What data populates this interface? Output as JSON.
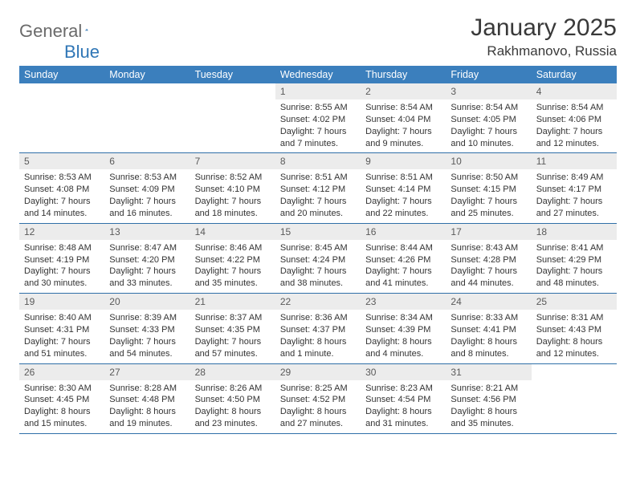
{
  "brand": {
    "name_a": "General",
    "name_b": "Blue"
  },
  "title": "January 2025",
  "location": "Rakhmanovo, Russia",
  "colors": {
    "header_bg": "#3b7fbd",
    "header_text": "#ffffff",
    "daynum_bg": "#ececec",
    "daynum_text": "#5a5a5a",
    "row_border": "#2f6fa8",
    "body_text": "#333333",
    "logo_gray": "#6a6a6a",
    "logo_blue": "#2f76b6"
  },
  "weekdays": [
    "Sunday",
    "Monday",
    "Tuesday",
    "Wednesday",
    "Thursday",
    "Friday",
    "Saturday"
  ],
  "weeks": [
    [
      null,
      null,
      null,
      {
        "d": "1",
        "sr": "Sunrise: 8:55 AM",
        "ss": "Sunset: 4:02 PM",
        "dl1": "Daylight: 7 hours",
        "dl2": "and 7 minutes."
      },
      {
        "d": "2",
        "sr": "Sunrise: 8:54 AM",
        "ss": "Sunset: 4:04 PM",
        "dl1": "Daylight: 7 hours",
        "dl2": "and 9 minutes."
      },
      {
        "d": "3",
        "sr": "Sunrise: 8:54 AM",
        "ss": "Sunset: 4:05 PM",
        "dl1": "Daylight: 7 hours",
        "dl2": "and 10 minutes."
      },
      {
        "d": "4",
        "sr": "Sunrise: 8:54 AM",
        "ss": "Sunset: 4:06 PM",
        "dl1": "Daylight: 7 hours",
        "dl2": "and 12 minutes."
      }
    ],
    [
      {
        "d": "5",
        "sr": "Sunrise: 8:53 AM",
        "ss": "Sunset: 4:08 PM",
        "dl1": "Daylight: 7 hours",
        "dl2": "and 14 minutes."
      },
      {
        "d": "6",
        "sr": "Sunrise: 8:53 AM",
        "ss": "Sunset: 4:09 PM",
        "dl1": "Daylight: 7 hours",
        "dl2": "and 16 minutes."
      },
      {
        "d": "7",
        "sr": "Sunrise: 8:52 AM",
        "ss": "Sunset: 4:10 PM",
        "dl1": "Daylight: 7 hours",
        "dl2": "and 18 minutes."
      },
      {
        "d": "8",
        "sr": "Sunrise: 8:51 AM",
        "ss": "Sunset: 4:12 PM",
        "dl1": "Daylight: 7 hours",
        "dl2": "and 20 minutes."
      },
      {
        "d": "9",
        "sr": "Sunrise: 8:51 AM",
        "ss": "Sunset: 4:14 PM",
        "dl1": "Daylight: 7 hours",
        "dl2": "and 22 minutes."
      },
      {
        "d": "10",
        "sr": "Sunrise: 8:50 AM",
        "ss": "Sunset: 4:15 PM",
        "dl1": "Daylight: 7 hours",
        "dl2": "and 25 minutes."
      },
      {
        "d": "11",
        "sr": "Sunrise: 8:49 AM",
        "ss": "Sunset: 4:17 PM",
        "dl1": "Daylight: 7 hours",
        "dl2": "and 27 minutes."
      }
    ],
    [
      {
        "d": "12",
        "sr": "Sunrise: 8:48 AM",
        "ss": "Sunset: 4:19 PM",
        "dl1": "Daylight: 7 hours",
        "dl2": "and 30 minutes."
      },
      {
        "d": "13",
        "sr": "Sunrise: 8:47 AM",
        "ss": "Sunset: 4:20 PM",
        "dl1": "Daylight: 7 hours",
        "dl2": "and 33 minutes."
      },
      {
        "d": "14",
        "sr": "Sunrise: 8:46 AM",
        "ss": "Sunset: 4:22 PM",
        "dl1": "Daylight: 7 hours",
        "dl2": "and 35 minutes."
      },
      {
        "d": "15",
        "sr": "Sunrise: 8:45 AM",
        "ss": "Sunset: 4:24 PM",
        "dl1": "Daylight: 7 hours",
        "dl2": "and 38 minutes."
      },
      {
        "d": "16",
        "sr": "Sunrise: 8:44 AM",
        "ss": "Sunset: 4:26 PM",
        "dl1": "Daylight: 7 hours",
        "dl2": "and 41 minutes."
      },
      {
        "d": "17",
        "sr": "Sunrise: 8:43 AM",
        "ss": "Sunset: 4:28 PM",
        "dl1": "Daylight: 7 hours",
        "dl2": "and 44 minutes."
      },
      {
        "d": "18",
        "sr": "Sunrise: 8:41 AM",
        "ss": "Sunset: 4:29 PM",
        "dl1": "Daylight: 7 hours",
        "dl2": "and 48 minutes."
      }
    ],
    [
      {
        "d": "19",
        "sr": "Sunrise: 8:40 AM",
        "ss": "Sunset: 4:31 PM",
        "dl1": "Daylight: 7 hours",
        "dl2": "and 51 minutes."
      },
      {
        "d": "20",
        "sr": "Sunrise: 8:39 AM",
        "ss": "Sunset: 4:33 PM",
        "dl1": "Daylight: 7 hours",
        "dl2": "and 54 minutes."
      },
      {
        "d": "21",
        "sr": "Sunrise: 8:37 AM",
        "ss": "Sunset: 4:35 PM",
        "dl1": "Daylight: 7 hours",
        "dl2": "and 57 minutes."
      },
      {
        "d": "22",
        "sr": "Sunrise: 8:36 AM",
        "ss": "Sunset: 4:37 PM",
        "dl1": "Daylight: 8 hours",
        "dl2": "and 1 minute."
      },
      {
        "d": "23",
        "sr": "Sunrise: 8:34 AM",
        "ss": "Sunset: 4:39 PM",
        "dl1": "Daylight: 8 hours",
        "dl2": "and 4 minutes."
      },
      {
        "d": "24",
        "sr": "Sunrise: 8:33 AM",
        "ss": "Sunset: 4:41 PM",
        "dl1": "Daylight: 8 hours",
        "dl2": "and 8 minutes."
      },
      {
        "d": "25",
        "sr": "Sunrise: 8:31 AM",
        "ss": "Sunset: 4:43 PM",
        "dl1": "Daylight: 8 hours",
        "dl2": "and 12 minutes."
      }
    ],
    [
      {
        "d": "26",
        "sr": "Sunrise: 8:30 AM",
        "ss": "Sunset: 4:45 PM",
        "dl1": "Daylight: 8 hours",
        "dl2": "and 15 minutes."
      },
      {
        "d": "27",
        "sr": "Sunrise: 8:28 AM",
        "ss": "Sunset: 4:48 PM",
        "dl1": "Daylight: 8 hours",
        "dl2": "and 19 minutes."
      },
      {
        "d": "28",
        "sr": "Sunrise: 8:26 AM",
        "ss": "Sunset: 4:50 PM",
        "dl1": "Daylight: 8 hours",
        "dl2": "and 23 minutes."
      },
      {
        "d": "29",
        "sr": "Sunrise: 8:25 AM",
        "ss": "Sunset: 4:52 PM",
        "dl1": "Daylight: 8 hours",
        "dl2": "and 27 minutes."
      },
      {
        "d": "30",
        "sr": "Sunrise: 8:23 AM",
        "ss": "Sunset: 4:54 PM",
        "dl1": "Daylight: 8 hours",
        "dl2": "and 31 minutes."
      },
      {
        "d": "31",
        "sr": "Sunrise: 8:21 AM",
        "ss": "Sunset: 4:56 PM",
        "dl1": "Daylight: 8 hours",
        "dl2": "and 35 minutes."
      },
      null
    ]
  ]
}
